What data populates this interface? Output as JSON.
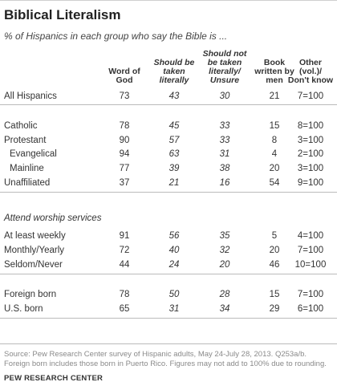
{
  "header": {
    "title": "Biblical Literalism",
    "subtitle": "% of Hispanics in each group who say the Bible is ..."
  },
  "chart_data": {
    "type": "table",
    "title": "Biblical Literalism",
    "subtitle": "% of Hispanics in each group who say the Bible is ...",
    "columns": [
      {
        "lines": [
          "Word of",
          "God"
        ],
        "italic": false
      },
      {
        "lines": [
          "Should be",
          "taken",
          "literally"
        ],
        "italic": true
      },
      {
        "lines": [
          "Should not",
          "be taken",
          "literally/",
          "Unsure"
        ],
        "italic": true
      },
      {
        "lines": [
          "Book",
          "written by",
          "men"
        ],
        "italic": false
      },
      {
        "lines": [
          "Other",
          "(vol.)/",
          "Don't know"
        ],
        "italic": false
      }
    ],
    "section_label": "Attend worship services",
    "rows": [
      {
        "label": "All Hispanics",
        "values": [
          "73",
          "43",
          "30",
          "21",
          "7=100"
        ]
      },
      {
        "label": "Catholic",
        "values": [
          "78",
          "45",
          "33",
          "15",
          "8=100"
        ]
      },
      {
        "label": "Protestant",
        "values": [
          "90",
          "57",
          "33",
          "8",
          "3=100"
        ]
      },
      {
        "label": "Evangelical",
        "values": [
          "94",
          "63",
          "31",
          "4",
          "2=100"
        ]
      },
      {
        "label": "Mainline",
        "values": [
          "77",
          "39",
          "38",
          "20",
          "3=100"
        ]
      },
      {
        "label": "Unaffiliated",
        "values": [
          "37",
          "21",
          "16",
          "54",
          "9=100"
        ]
      },
      {
        "label": "At least weekly",
        "values": [
          "91",
          "56",
          "35",
          "5",
          "4=100"
        ]
      },
      {
        "label": "Monthly/Yearly",
        "values": [
          "72",
          "40",
          "32",
          "20",
          "7=100"
        ]
      },
      {
        "label": "Seldom/Never",
        "values": [
          "44",
          "24",
          "20",
          "46",
          "10=100"
        ]
      },
      {
        "label": "Foreign born",
        "values": [
          "78",
          "50",
          "28",
          "15",
          "7=100"
        ]
      },
      {
        "label": "U.S. born",
        "values": [
          "65",
          "31",
          "34",
          "29",
          "6=100"
        ]
      }
    ]
  },
  "footer": {
    "source": "Source: Pew Research Center survey of Hispanic adults, May 24-July 28, 2013. Q253a/b. Foreign born includes those born in Puerto Rico. Figures may not add to 100% due to rounding.",
    "brand": "PEW RESEARCH CENTER"
  }
}
